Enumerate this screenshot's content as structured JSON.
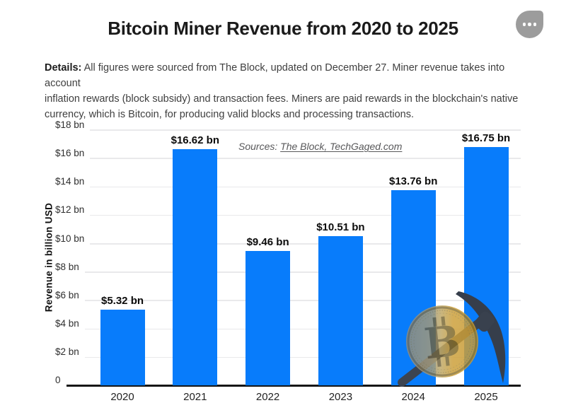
{
  "page": {
    "title": "Bitcoin Miner Revenue from 2020 to 2025"
  },
  "menu": {
    "icon": "ellipsis-icon"
  },
  "details": {
    "label": "Details:",
    "line1": " All figures were sourced from The Block, updated on December 27. Miner revenue takes into account",
    "line2": "inflation rewards (block subsidy) and transaction fees. Miners are paid rewards in the blockchain's native",
    "line3": "currency, which is Bitcoin, for producing valid blocks and processing transactions."
  },
  "sources": {
    "prefix": "Sources: ",
    "links": "The Block, TechGaged.com"
  },
  "chart_data": {
    "type": "bar",
    "title": "Bitcoin Miner Revenue from 2020 to 2025",
    "categories": [
      "2020",
      "2021",
      "2022",
      "2023",
      "2024",
      "2025"
    ],
    "values": [
      5.32,
      16.62,
      9.46,
      10.51,
      13.76,
      16.75
    ],
    "bar_labels": [
      "$5.32 bn",
      "$16.62 bn",
      "$9.46 bn",
      "$10.51 bn",
      "$13.76 bn",
      "$16.75 bn"
    ],
    "xlabel": "",
    "ylabel": "Revenue in billion USD",
    "ylim": [
      0,
      18
    ],
    "y_ticks": [
      {
        "value": 18,
        "label": "$18 bn"
      },
      {
        "value": 16,
        "label": "$16 bn"
      },
      {
        "value": 14,
        "label": "$14 bn"
      },
      {
        "value": 12,
        "label": "$12 bn"
      },
      {
        "value": 10,
        "label": "$10 bn"
      },
      {
        "value": 8,
        "label": "$8 bn"
      },
      {
        "value": 6,
        "label": "$6 bn"
      },
      {
        "value": 4,
        "label": "$4 bn"
      },
      {
        "value": 2,
        "label": "$2 bn"
      },
      {
        "value": 0,
        "label": "0"
      }
    ],
    "grid": true,
    "legend_position": "none",
    "bar_color": "#087cfb",
    "grid_color": "#e9e9eb",
    "axis_color": "#161616"
  }
}
